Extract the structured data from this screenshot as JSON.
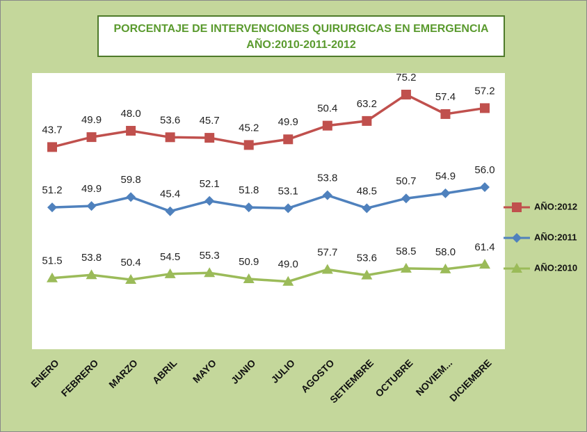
{
  "chart_data": {
    "type": "line",
    "stacked": true,
    "title": "PORCENTAJE DE INTERVENCIONES QUIRURGICAS EN EMERGENCIA",
    "subtitle": "AÑO:2010-2011-2012",
    "categories": [
      "ENERO",
      "FEBRERO",
      "MARZO",
      "ABRIL",
      "MAYO",
      "JUNIO",
      "JULIO",
      "AGOSTO",
      "SETIEMBRE",
      "OCTUBRE",
      "NOVIEM...",
      "DICIEMBRE"
    ],
    "ylim": [
      0,
      200
    ],
    "legend": "right",
    "series": [
      {
        "name": "AÑO:2010",
        "color": "#9bbb59",
        "marker": "triangle",
        "values": [
          51.5,
          53.8,
          50.4,
          54.5,
          55.3,
          50.9,
          49.0,
          57.7,
          53.6,
          58.5,
          58.0,
          61.4
        ],
        "value_labels": [
          "51.5",
          "53.8",
          "50.4",
          "54.5",
          "55.3",
          "50.9",
          "49.0",
          "57.7",
          "53.6",
          "58.5",
          "58.0",
          "61.4"
        ]
      },
      {
        "name": "AÑO:2011",
        "color": "#4f81bd",
        "marker": "diamond",
        "values": [
          51.2,
          49.9,
          59.8,
          45.4,
          52.1,
          51.8,
          53.1,
          53.8,
          48.5,
          50.7,
          54.9,
          56.0
        ],
        "value_labels": [
          "51.2",
          "49.9",
          "59.8",
          "45.4",
          "52.1",
          "51.8",
          "53.1",
          "53.8",
          "48.5",
          "50.7",
          "54.9",
          "56.0"
        ]
      },
      {
        "name": "AÑO:2012",
        "color": "#c0504d",
        "marker": "square",
        "values": [
          43.7,
          49.9,
          48.0,
          53.6,
          45.7,
          45.2,
          49.9,
          50.4,
          63.2,
          75.2,
          57.4,
          57.2
        ],
        "value_labels": [
          "43.7",
          "49.9",
          "48.0",
          "53.6",
          "45.7",
          "45.2",
          "49.9",
          "50.4",
          "63.2",
          "75.2",
          "57.4",
          "57.2"
        ]
      }
    ]
  }
}
